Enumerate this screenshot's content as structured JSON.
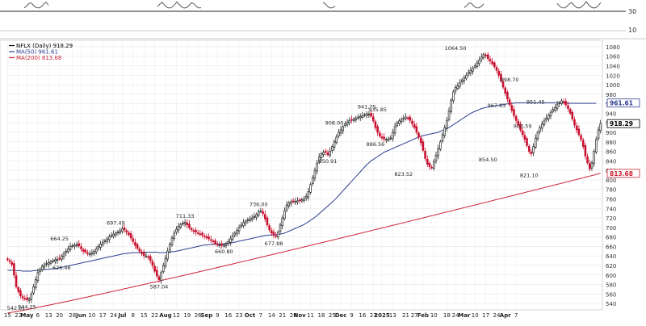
{
  "chart_data": {
    "type": "line",
    "title": "NFLX (Daily) 918.29",
    "legend": [
      {
        "label": "NFLX (Daily) 918.29",
        "color": "#000000"
      },
      {
        "label": "MA(50) 961.61",
        "color": "#2b3c8f"
      },
      {
        "label": "MA(200) 813.68",
        "color": "#cc2233"
      }
    ],
    "upper_panel": {
      "level_label": "30",
      "lower_label": "10"
    },
    "ylim": [
      530,
      1090
    ],
    "y_ticks": [
      540,
      560,
      580,
      600,
      620,
      640,
      660,
      680,
      700,
      720,
      740,
      760,
      780,
      800,
      820,
      840,
      860,
      880,
      900,
      920,
      940,
      960,
      980,
      1000,
      1020,
      1040,
      1060,
      1080
    ],
    "x_labels": [
      "15",
      "22",
      "May",
      "6",
      "13",
      "20",
      "28",
      "Jun",
      "10",
      "17",
      "24",
      "Jul",
      "8",
      "15",
      "22",
      "Aug",
      "12",
      "19",
      "26",
      "Sep",
      "9",
      "16",
      "23",
      "Oct",
      "7",
      "14",
      "21",
      "28",
      "Nov",
      "11",
      "18",
      "25",
      "Dec",
      "9",
      "16",
      "23",
      "2025",
      "13",
      "21",
      "27",
      "Feb",
      "10",
      "18",
      "24",
      "Mar",
      "10",
      "17",
      "24",
      "Apr",
      "7"
    ],
    "x_label_index": [
      0,
      5,
      9,
      14,
      19,
      24,
      30,
      34,
      39,
      44,
      49,
      53,
      58,
      63,
      68,
      73,
      78,
      83,
      88,
      92,
      97,
      102,
      107,
      112,
      117,
      122,
      127,
      132,
      135,
      140,
      145,
      150,
      154,
      159,
      164,
      169,
      173,
      178,
      184,
      188,
      192,
      197,
      203,
      207,
      211,
      216,
      221,
      226,
      230,
      235
    ],
    "price_annotations": [
      {
        "i": 4,
        "value": 542.01,
        "label": "542.01"
      },
      {
        "i": 9,
        "value": 544.25,
        "label": "544.25"
      },
      {
        "i": 25,
        "value": 626.46,
        "label": "626.46"
      },
      {
        "i": 24,
        "value": 664.25,
        "label": "664.25"
      },
      {
        "i": 50,
        "value": 697.49,
        "label": "697.49"
      },
      {
        "i": 70,
        "value": 587.04,
        "label": "587.04"
      },
      {
        "i": 82,
        "value": 711.33,
        "label": "711.33"
      },
      {
        "i": 100,
        "value": 660.8,
        "label": "660.80"
      },
      {
        "i": 116,
        "value": 736.0,
        "label": "736.00"
      },
      {
        "i": 123,
        "value": 677.88,
        "label": "677.88"
      },
      {
        "i": 151,
        "value": 908.0,
        "label": "908.00"
      },
      {
        "i": 148,
        "value": 850.91,
        "label": "850.91"
      },
      {
        "i": 166,
        "value": 941.75,
        "label": "941.75"
      },
      {
        "i": 171,
        "value": 935.85,
        "label": "935.85"
      },
      {
        "i": 170,
        "value": 886.56,
        "label": "886.56"
      },
      {
        "i": 183,
        "value": 823.52,
        "label": "823.52"
      },
      {
        "i": 207,
        "value": 1064.5,
        "label": "1064.50"
      },
      {
        "i": 226,
        "value": 967.63,
        "label": "967.63"
      },
      {
        "i": 232,
        "value": 998.7,
        "label": "998.70"
      },
      {
        "i": 222,
        "value": 854.5,
        "label": "854.50"
      },
      {
        "i": 238,
        "value": 900.59,
        "label": "900.59"
      },
      {
        "i": 244,
        "value": 951.45,
        "label": "951.45"
      },
      {
        "i": 241,
        "value": 821.1,
        "label": "821.10"
      }
    ],
    "series": [
      {
        "name": "NFLX (Daily)",
        "values": [
          632,
          628,
          622,
          600,
          575,
          565,
          556,
          552,
          550,
          548,
          550,
          560,
          575,
          590,
          605,
          612,
          618,
          621,
          624,
          626,
          628,
          630,
          632,
          633,
          634,
          640,
          645,
          650,
          655,
          660,
          662,
          663,
          664,
          661,
          655,
          650,
          648,
          645,
          644,
          646,
          650,
          655,
          660,
          665,
          668,
          672,
          676,
          680,
          683,
          686,
          688,
          690,
          693,
          697,
          695,
          690,
          685,
          678,
          670,
          662,
          656,
          650,
          645,
          641,
          640,
          637,
          630,
          620,
          608,
          598,
          590,
          605,
          620,
          635,
          650,
          665,
          678,
          688,
          696,
          702,
          706,
          709,
          711,
          705,
          699,
          695,
          692,
          690,
          688,
          686,
          684,
          682,
          678,
          676,
          673,
          670,
          666,
          664,
          663,
          662,
          663,
          665,
          670,
          676,
          682,
          688,
          694,
          700,
          705,
          710,
          713,
          716,
          718,
          720,
          723,
          727,
          733,
          735,
          729,
          718,
          705,
          695,
          688,
          684,
          681,
          690,
          705,
          720,
          735,
          747,
          752,
          754,
          754,
          755,
          756,
          757,
          758,
          760,
          765,
          775,
          790,
          805,
          820,
          835,
          848,
          855,
          858,
          858,
          853,
          860,
          870,
          880,
          890,
          900,
          905,
          912,
          918,
          922,
          925,
          926,
          928,
          930,
          932,
          933,
          935,
          937,
          939,
          938,
          934,
          924,
          910,
          900,
          892,
          888,
          886,
          885,
          886,
          888,
          900,
          912,
          920,
          924,
          926,
          930,
          932,
          930,
          925,
          918,
          910,
          900,
          890,
          878,
          862,
          845,
          833,
          828,
          826,
          838,
          852,
          866,
          880,
          895,
          910,
          925,
          945,
          968,
          985,
          994,
          998,
          1004,
          1010,
          1015,
          1020,
          1026,
          1030,
          1035,
          1040,
          1046,
          1052,
          1058,
          1064,
          1061,
          1055,
          1050,
          1044,
          1038,
          1030,
          1020,
          1008,
          995,
          982,
          970,
          958,
          946,
          935,
          925,
          915,
          905,
          895,
          885,
          872,
          860,
          855,
          870,
          888,
          900,
          910,
          918,
          924,
          930,
          936,
          942,
          948,
          952,
          958,
          962,
          966,
          963,
          958,
          950,
          940,
          928,
          915,
          905,
          895,
          885,
          870,
          850,
          836,
          823,
          836,
          860,
          885,
          905,
          918
        ]
      },
      {
        "name": "MA(50)",
        "values": [
          610,
          610,
          610,
          610,
          609,
          609,
          609,
          608,
          608,
          608,
          608,
          608,
          609,
          609,
          610,
          610,
          611,
          611,
          612,
          612,
          613,
          613,
          614,
          614,
          615,
          616,
          617,
          618,
          619,
          620,
          621,
          622,
          623,
          624,
          625,
          626,
          627,
          628,
          629,
          630,
          631,
          632,
          633,
          634,
          635,
          636,
          637,
          638,
          639,
          640,
          641,
          642,
          643,
          644,
          645,
          645,
          646,
          646,
          647,
          647,
          647,
          647,
          648,
          648,
          648,
          648,
          648,
          648,
          648,
          648,
          647,
          647,
          647,
          647,
          648,
          648,
          649,
          649,
          650,
          651,
          652,
          653,
          654,
          655,
          656,
          657,
          658,
          659,
          660,
          661,
          662,
          663,
          663,
          664,
          664,
          664,
          665,
          665,
          665,
          665,
          666,
          666,
          667,
          667,
          668,
          669,
          670,
          671,
          672,
          673,
          674,
          675,
          676,
          677,
          678,
          679,
          680,
          681,
          682,
          683,
          683,
          684,
          684,
          684,
          685,
          685,
          686,
          687,
          688,
          690,
          692,
          694,
          696,
          698,
          700,
          702,
          704,
          706,
          709,
          712,
          715,
          718,
          721,
          725,
          729,
          733,
          737,
          741,
          745,
          749,
          753,
          757,
          762,
          767,
          772,
          777,
          782,
          787,
          792,
          797,
          802,
          807,
          812,
          817,
          822,
          827,
          832,
          836,
          840,
          843,
          846,
          849,
          852,
          855,
          858,
          860,
          862,
          864,
          866,
          868,
          870,
          872,
          874,
          876,
          878,
          880,
          882,
          884,
          886,
          888,
          890,
          892,
          893,
          894,
          895,
          896,
          897,
          898,
          899,
          900,
          902,
          904,
          906,
          908,
          910,
          913,
          916,
          919,
          922,
          925,
          928,
          931,
          934,
          937,
          940,
          942,
          944,
          946,
          948,
          950,
          951,
          952,
          953,
          954,
          955,
          956,
          956,
          957,
          958,
          958,
          959,
          960,
          960,
          961,
          961,
          962,
          962,
          962,
          962,
          962,
          962,
          962,
          962,
          962,
          962,
          962,
          962,
          962,
          962,
          962,
          962,
          962,
          962,
          962,
          962,
          962,
          962,
          962,
          962,
          961,
          961,
          961,
          961,
          961,
          961,
          961,
          961,
          961,
          961,
          961,
          961,
          961,
          961
        ]
      }
    ],
    "ma200": {
      "name": "MA(200)",
      "start": 520,
      "end": 813.68
    },
    "grid": true
  }
}
